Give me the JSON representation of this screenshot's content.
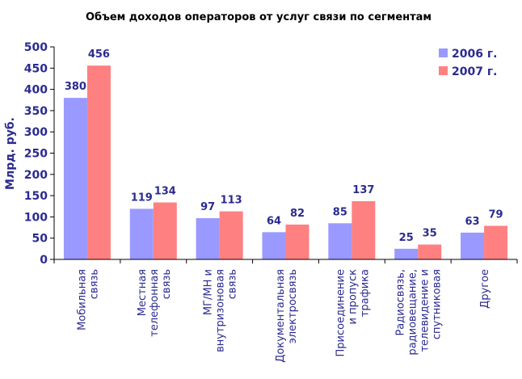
{
  "chart_data": {
    "type": "bar",
    "title": "Объем доходов операторов от услуг связи по сегментам",
    "xlabel": "",
    "ylabel": "Млрд. руб.",
    "ylim": [
      0,
      500
    ],
    "yticks": [
      0,
      50,
      100,
      150,
      200,
      250,
      300,
      350,
      400,
      450,
      500
    ],
    "grid": false,
    "legend_position": "top-right",
    "categories": [
      [
        "Мобильная",
        "связь"
      ],
      [
        "Местная",
        "телефонная",
        "связь"
      ],
      [
        "МГ/МН и",
        "внутризоновая",
        "связь"
      ],
      [
        "Документальная",
        "электросвязь"
      ],
      [
        "Присоединение",
        "и пропуск",
        "трафика"
      ],
      [
        "Радиосвязь,",
        "радиовещание,",
        "телевидение и",
        "спутниковая"
      ],
      [
        "Другое"
      ]
    ],
    "series": [
      {
        "name": "2006 г.",
        "color": "#9999ff",
        "values": [
          380,
          119,
          97,
          64,
          85,
          25,
          63
        ]
      },
      {
        "name": "2007 г.",
        "color": "#ff8080",
        "values": [
          456,
          134,
          113,
          82,
          137,
          35,
          79
        ]
      }
    ]
  }
}
